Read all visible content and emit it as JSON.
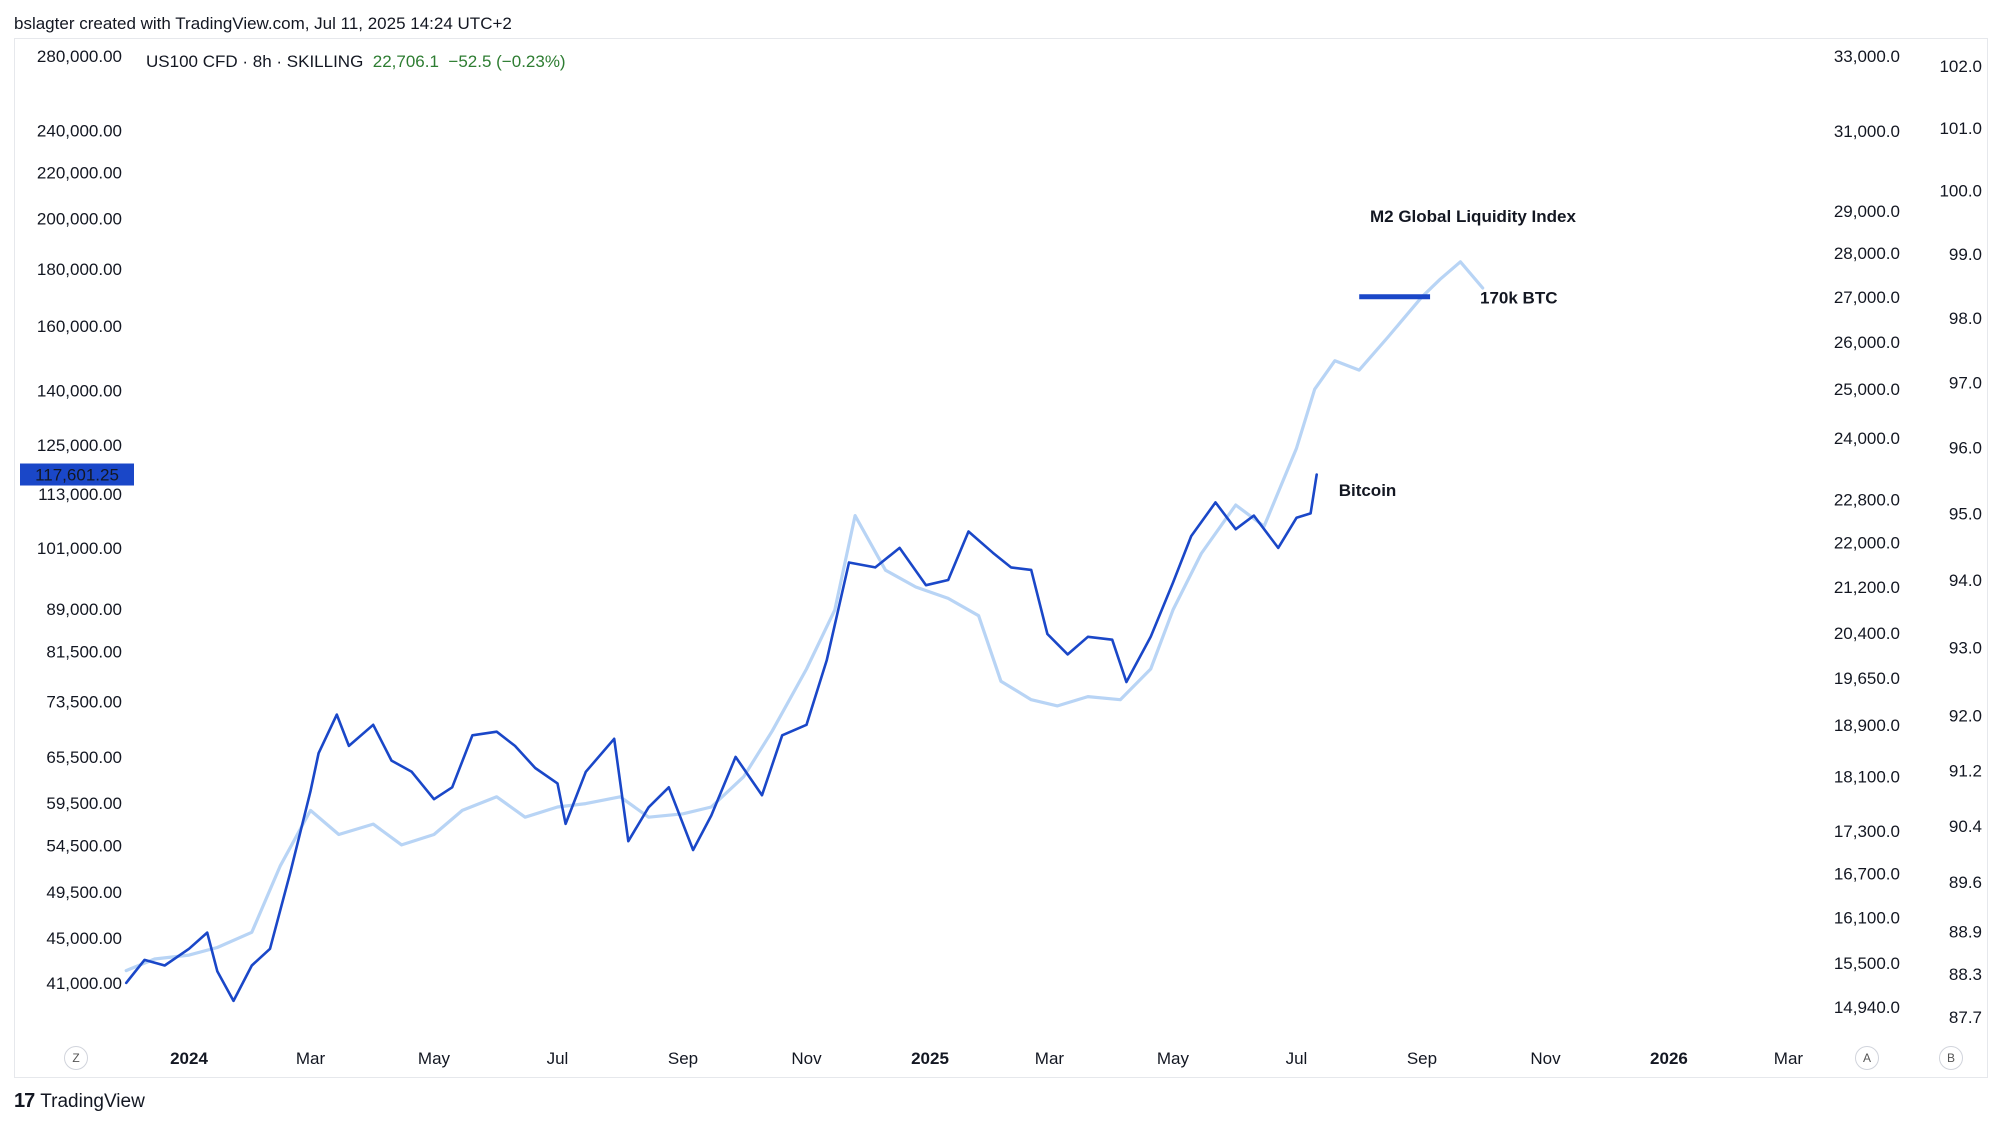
{
  "header": {
    "text": "bslagter created with TradingView.com, Jul 11, 2025 14:24 UTC+2"
  },
  "symbol": {
    "name": "US100 CFD · 8h · SKILLING",
    "price": "22,706.1",
    "change": "−52.5 (−0.23%)"
  },
  "footer": {
    "logo_mark": "17",
    "brand": "TradingView"
  },
  "buttons": {
    "z": "Z",
    "a": "A",
    "b": "B"
  },
  "colors": {
    "bitcoin": "#1a47c8",
    "m2": "#b8d4f5",
    "text": "#131722",
    "positive": "#2e7d32"
  },
  "chart_data": {
    "type": "line",
    "price_label": "117,601.25",
    "left_axis_ticks": [
      "280,000.00",
      "240,000.00",
      "220,000.00",
      "200,000.00",
      "180,000.00",
      "160,000.00",
      "140,000.00",
      "125,000.00",
      "113,000.00",
      "101,000.00",
      "89,000.00",
      "81,500.00",
      "73,500.00",
      "65,500.00",
      "59,500.00",
      "54,500.00",
      "49,500.00",
      "45,000.00",
      "41,000.00"
    ],
    "right_axis_1_ticks": [
      "33,000.0",
      "31,000.0",
      "29,000.0",
      "28,000.0",
      "27,000.0",
      "26,000.0",
      "25,000.0",
      "24,000.0",
      "22,800.0",
      "22,000.0",
      "21,200.0",
      "20,400.0",
      "19,650.0",
      "18,900.0",
      "18,100.0",
      "17,300.0",
      "16,700.0",
      "16,100.0",
      "15,500.0",
      "14,940.0"
    ],
    "right_axis_2_ticks": [
      "102.0",
      "101.0",
      "100.0",
      "99.0",
      "98.0",
      "97.0",
      "96.0",
      "95.0",
      "94.0",
      "93.0",
      "92.0",
      "91.2",
      "90.4",
      "89.6",
      "88.9",
      "88.3",
      "87.7"
    ],
    "x_ticks": [
      {
        "label": "2024",
        "bold": true
      },
      {
        "label": "Mar",
        "bold": false
      },
      {
        "label": "May",
        "bold": false
      },
      {
        "label": "Jul",
        "bold": false
      },
      {
        "label": "Sep",
        "bold": false
      },
      {
        "label": "Nov",
        "bold": false
      },
      {
        "label": "2025",
        "bold": true
      },
      {
        "label": "Mar",
        "bold": false
      },
      {
        "label": "May",
        "bold": false
      },
      {
        "label": "Jul",
        "bold": false
      },
      {
        "label": "Sep",
        "bold": false
      },
      {
        "label": "Nov",
        "bold": false
      },
      {
        "label": "2026",
        "bold": true
      },
      {
        "label": "Mar",
        "bold": false
      }
    ],
    "annotations": {
      "m2": "M2 Global Liquidity Index",
      "btc_level": "170k BTC",
      "bitcoin": "Bitcoin"
    },
    "btc_level_value": 170000,
    "series": [
      {
        "name": "Bitcoin",
        "color": "#1a47c8",
        "x": [
          "2023-12-01",
          "2023-12-10",
          "2023-12-20",
          "2024-01-01",
          "2024-01-10",
          "2024-01-15",
          "2024-01-23",
          "2024-02-01",
          "2024-02-10",
          "2024-02-20",
          "2024-03-01",
          "2024-03-05",
          "2024-03-14",
          "2024-03-20",
          "2024-04-01",
          "2024-04-10",
          "2024-04-20",
          "2024-05-01",
          "2024-05-10",
          "2024-05-20",
          "2024-06-01",
          "2024-06-10",
          "2024-06-20",
          "2024-07-01",
          "2024-07-05",
          "2024-07-15",
          "2024-07-29",
          "2024-08-05",
          "2024-08-15",
          "2024-08-25",
          "2024-09-06",
          "2024-09-15",
          "2024-09-27",
          "2024-10-10",
          "2024-10-20",
          "2024-11-01",
          "2024-11-11",
          "2024-11-22",
          "2024-12-05",
          "2024-12-17",
          "2024-12-30",
          "2025-01-10",
          "2025-01-20",
          "2025-02-01",
          "2025-02-10",
          "2025-02-20",
          "2025-02-28",
          "2025-03-10",
          "2025-03-20",
          "2025-04-01",
          "2025-04-08",
          "2025-04-20",
          "2025-05-01",
          "2025-05-10",
          "2025-05-22",
          "2025-06-01",
          "2025-06-10",
          "2025-06-22",
          "2025-07-01",
          "2025-07-08",
          "2025-07-11"
        ],
        "values": [
          41000,
          43000,
          42500,
          44000,
          45500,
          42000,
          39500,
          42500,
          44000,
          51500,
          61000,
          66000,
          71500,
          67000,
          70000,
          65000,
          63500,
          60000,
          61500,
          68500,
          69000,
          67000,
          64000,
          62000,
          57000,
          63500,
          68000,
          55000,
          59000,
          61500,
          54000,
          58000,
          65500,
          60500,
          68500,
          70000,
          80000,
          98000,
          97000,
          101000,
          93500,
          94500,
          104500,
          100000,
          97000,
          96500,
          84500,
          81000,
          84000,
          83500,
          76500,
          84000,
          94000,
          103500,
          111000,
          105000,
          108000,
          101000,
          107500,
          108500,
          117600
        ]
      },
      {
        "name": "M2 Global Liquidity Index",
        "color": "#b8d4f5",
        "x": [
          "2023-12-01",
          "2023-12-15",
          "2024-01-01",
          "2024-01-15",
          "2024-02-01",
          "2024-02-15",
          "2024-03-01",
          "2024-03-15",
          "2024-04-01",
          "2024-04-15",
          "2024-05-01",
          "2024-05-15",
          "2024-06-01",
          "2024-06-15",
          "2024-07-01",
          "2024-07-15",
          "2024-08-01",
          "2024-08-15",
          "2024-09-01",
          "2024-09-15",
          "2024-10-01",
          "2024-10-15",
          "2024-11-01",
          "2024-11-15",
          "2024-11-25",
          "2024-12-10",
          "2024-12-25",
          "2025-01-10",
          "2025-01-25",
          "2025-02-05",
          "2025-02-20",
          "2025-03-05",
          "2025-03-20",
          "2025-04-05",
          "2025-04-20",
          "2025-05-01",
          "2025-05-15",
          "2025-06-01",
          "2025-06-15",
          "2025-07-01",
          "2025-07-10",
          "2025-07-20",
          "2025-08-01",
          "2025-08-15",
          "2025-09-01",
          "2025-09-10",
          "2025-09-20",
          "2025-10-01"
        ],
        "values": [
          15400,
          15550,
          15600,
          15700,
          15900,
          16800,
          17600,
          17250,
          17400,
          17100,
          17250,
          17600,
          17800,
          17500,
          17650,
          17700,
          17800,
          17500,
          17550,
          17650,
          18100,
          18800,
          19800,
          20800,
          22500,
          21500,
          21200,
          21000,
          20700,
          19600,
          19300,
          19200,
          19350,
          19300,
          19800,
          20800,
          21800,
          22700,
          22300,
          23800,
          25000,
          25600,
          25400,
          26100,
          27000,
          27400,
          27800,
          27200
        ]
      }
    ]
  }
}
